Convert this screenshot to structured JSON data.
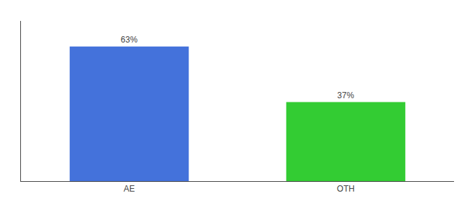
{
  "chart_data": {
    "type": "bar",
    "categories": [
      "AE",
      "OTH"
    ],
    "values": [
      63,
      37
    ],
    "value_labels": [
      "63%",
      "37%"
    ],
    "data_labels": true,
    "colors": [
      "#4472db",
      "#33cc33"
    ],
    "ylim": [
      0,
      75
    ],
    "yticks": [],
    "tick_labels": "x",
    "grid": false
  }
}
